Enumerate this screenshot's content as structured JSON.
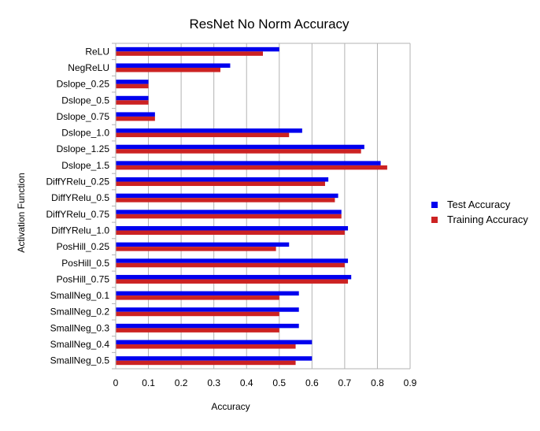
{
  "chart_data": {
    "type": "bar",
    "orientation": "horizontal",
    "title": "ResNet No Norm Accuracy",
    "xlabel": "Accuracy",
    "ylabel": "Activation Function",
    "xlim": [
      0,
      0.9
    ],
    "xticks": [
      0,
      0.1,
      0.2,
      0.3,
      0.4,
      0.5,
      0.6,
      0.7,
      0.8,
      0.9
    ],
    "grid": true,
    "legend_position": "right",
    "categories": [
      "ReLU",
      "NegReLU",
      "Dslope_0.25",
      "Dslope_0.5",
      "Dslope_0.75",
      "Dslope_1.0",
      "Dslope_1.25",
      "Dslope_1.5",
      "DiffYRelu_0.25",
      "DiffYRelu_0.5",
      "DiffYRelu_0.75",
      "DiffYRelu_1.0",
      "PosHill_0.25",
      "PosHill_0.5",
      "PosHill_0.75",
      "SmallNeg_0.1",
      "SmallNeg_0.2",
      "SmallNeg_0.3",
      "SmallNeg_0.4",
      "SmallNeg_0.5"
    ],
    "series": [
      {
        "name": "Test Accuracy",
        "color": "#0000ee",
        "values": [
          0.5,
          0.35,
          0.1,
          0.1,
          0.12,
          0.57,
          0.76,
          0.81,
          0.65,
          0.68,
          0.69,
          0.71,
          0.53,
          0.71,
          0.72,
          0.56,
          0.56,
          0.56,
          0.6,
          0.6
        ]
      },
      {
        "name": "Training Accuracy",
        "color": "#cc2222",
        "values": [
          0.45,
          0.32,
          0.1,
          0.1,
          0.12,
          0.53,
          0.75,
          0.83,
          0.64,
          0.67,
          0.69,
          0.7,
          0.49,
          0.7,
          0.71,
          0.5,
          0.5,
          0.5,
          0.55,
          0.55
        ]
      }
    ]
  }
}
